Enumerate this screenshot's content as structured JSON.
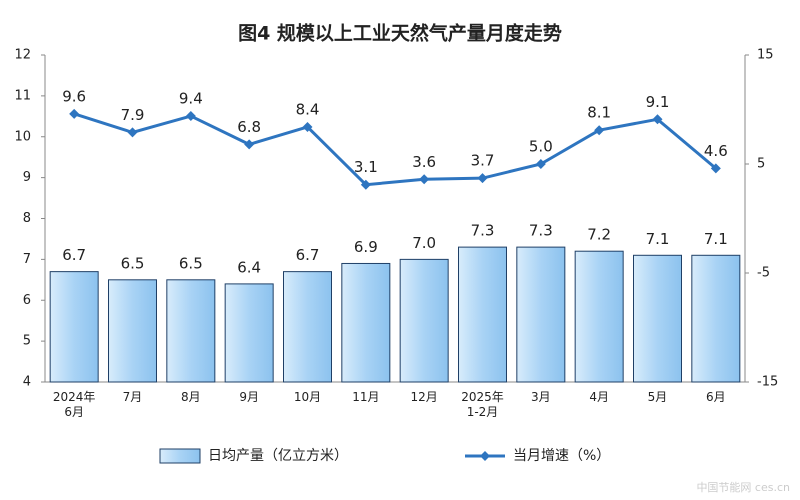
{
  "chart_data": {
    "type": "bar-line",
    "title": "图4  规模以上工业天然气产量月度走势",
    "categories": [
      "2024年\n6月",
      "7月",
      "8月",
      "9月",
      "10月",
      "11月",
      "12月",
      "2025年\n1-2月",
      "3月",
      "4月",
      "5月",
      "6月"
    ],
    "series": [
      {
        "name": "日均产量（亿立方米）",
        "type": "bar",
        "color": "#a9d3f5",
        "edge": "#1f3f66",
        "values": [
          6.7,
          6.5,
          6.5,
          6.4,
          6.7,
          6.9,
          7.0,
          7.3,
          7.3,
          7.2,
          7.1,
          7.1
        ],
        "value_labels": [
          "6.7",
          "6.5",
          "6.5",
          "6.4",
          "6.7",
          "6.9",
          "7.0",
          "7.3",
          "7.3",
          "7.2",
          "7.1",
          "7.1"
        ]
      },
      {
        "name": "当月增速（%）",
        "type": "line",
        "axis": "y2",
        "color": "#2e75c0",
        "values": [
          9.6,
          7.9,
          9.4,
          6.8,
          8.4,
          3.1,
          3.6,
          3.7,
          5.0,
          8.1,
          9.1,
          4.6
        ],
        "value_labels": [
          "9.6",
          "7.9",
          "9.4",
          "6.8",
          "8.4",
          "3.1",
          "3.6",
          "3.7",
          "5.0",
          "8.1",
          "9.1",
          "4.6"
        ]
      }
    ],
    "ylim": [
      4,
      12
    ],
    "yticks": [
      4,
      5,
      6,
      7,
      8,
      9,
      10,
      11,
      12
    ],
    "y2lim": [
      -15,
      15
    ],
    "y2ticks": [
      -15,
      -5,
      5,
      15
    ],
    "watermark": "中国节能网 ces.cn"
  }
}
